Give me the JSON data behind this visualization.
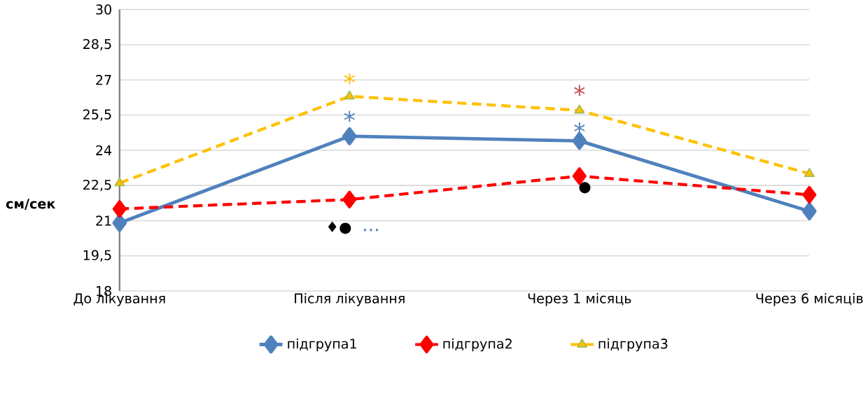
{
  "chart_data": {
    "type": "line",
    "ylabel": "см/сек",
    "categories": [
      "До лікування",
      "Після лікування",
      "Через 1 місяць",
      "Через 6 місяців"
    ],
    "series": [
      {
        "name": "підгрупа1",
        "color": "#4f81bd",
        "values": [
          20.9,
          24.6,
          24.4,
          21.4
        ],
        "marker": "diamond",
        "line_style": "solid"
      },
      {
        "name": "підгрупа2",
        "color": "#ff0000",
        "values": [
          21.5,
          21.9,
          22.9,
          22.1
        ],
        "marker": "diamond",
        "line_style": "dashed"
      },
      {
        "name": "підгрупа3",
        "color": "#ffc000",
        "values": [
          22.6,
          26.3,
          25.7,
          23.0
        ],
        "marker": "triangle",
        "line_style": "dashed"
      }
    ],
    "ylim": [
      18,
      30
    ],
    "yticks": [
      18,
      {
        "value": 19.5,
        "label": "19,5"
      },
      21,
      {
        "value": 22.5,
        "label": "22,5"
      },
      24,
      {
        "value": 25.5,
        "label": "25,5"
      },
      27,
      {
        "value": 28.5,
        "label": "28,5"
      },
      30
    ],
    "grid": "y",
    "legend": "bottom",
    "annotations": [
      "*",
      "*",
      "♦●",
      "...",
      "*",
      "*",
      "●"
    ]
  }
}
